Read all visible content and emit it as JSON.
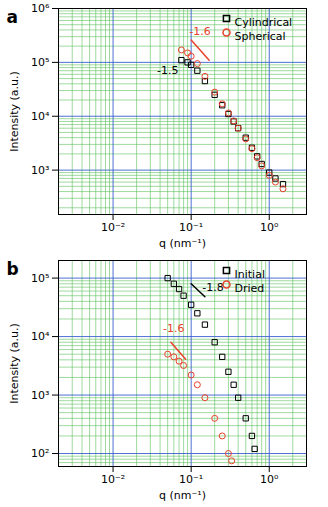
{
  "chart_data": [
    {
      "type": "scatter",
      "title": "a",
      "xlabel": "q (nm⁻¹)",
      "ylabel": "Intensity (a.u.)",
      "log": true,
      "grid": true,
      "legend": "top-right",
      "xlim": [
        0.002,
        3
      ],
      "ylim": [
        150,
        1000000
      ],
      "xticks": [
        {
          "value": 0.01,
          "label": "10⁻²"
        },
        {
          "value": 0.1,
          "label": "10⁻¹"
        },
        {
          "value": 1,
          "label": "10⁰"
        }
      ],
      "yticks": [
        {
          "value": 1000,
          "label": "10³"
        },
        {
          "value": 10000,
          "label": "10⁴"
        },
        {
          "value": 100000,
          "label": "10⁵"
        },
        {
          "value": 1000000,
          "label": "10⁶"
        }
      ],
      "series": [
        {
          "name": "Cylindrical",
          "color": "#000000",
          "marker": "square",
          "x": [
            0.075,
            0.09,
            0.1,
            0.12,
            0.15,
            0.2,
            0.25,
            0.3,
            0.35,
            0.4,
            0.5,
            0.6,
            0.7,
            0.8,
            1.0,
            1.2,
            1.5
          ],
          "values": [
            110000,
            100000,
            90000,
            70000,
            45000,
            25000,
            16000,
            11000,
            8000,
            6000,
            4000,
            2600,
            1800,
            1300,
            900,
            700,
            550
          ]
        },
        {
          "name": "Spherical",
          "color": "#e8412c",
          "marker": "circle",
          "x": [
            0.075,
            0.09,
            0.1,
            0.12,
            0.15,
            0.2,
            0.25,
            0.3,
            0.35,
            0.4,
            0.5,
            0.6,
            0.7,
            0.8,
            1.0,
            1.2,
            1.5
          ],
          "values": [
            170000,
            150000,
            130000,
            95000,
            55000,
            28000,
            17000,
            11500,
            8200,
            6000,
            3800,
            2500,
            1700,
            1200,
            800,
            600,
            450
          ]
        }
      ],
      "slope_lines": [
        {
          "color": "#e8412c",
          "x": [
            0.1,
            0.17
          ],
          "y": [
            260000,
            110000
          ]
        }
      ],
      "annotations": [
        {
          "text": "-1.6",
          "x": 0.13,
          "y": 380000,
          "color": "#e8412c"
        },
        {
          "text": "-1.5",
          "x": 0.05,
          "y": 70000,
          "color": "#000000"
        }
      ]
    },
    {
      "type": "scatter",
      "title": "b",
      "xlabel": "q (nm⁻¹)",
      "ylabel": "Intensity (a.u.)",
      "log": true,
      "grid": true,
      "legend": "top-right",
      "xlim": [
        0.002,
        3
      ],
      "ylim": [
        60,
        200000
      ],
      "xticks": [
        {
          "value": 0.01,
          "label": "10⁻²"
        },
        {
          "value": 0.1,
          "label": "10⁻¹"
        },
        {
          "value": 1,
          "label": "10⁰"
        }
      ],
      "yticks": [
        {
          "value": 100,
          "label": "10²"
        },
        {
          "value": 1000,
          "label": "10³"
        },
        {
          "value": 10000,
          "label": "10⁴"
        },
        {
          "value": 100000,
          "label": "10⁵"
        }
      ],
      "series": [
        {
          "name": "Initial",
          "color": "#000000",
          "marker": "square",
          "x": [
            0.05,
            0.06,
            0.07,
            0.08,
            0.1,
            0.12,
            0.15,
            0.2,
            0.25,
            0.3,
            0.35,
            0.4,
            0.5,
            0.6,
            0.65
          ],
          "values": [
            100000,
            80000,
            65000,
            50000,
            35000,
            25000,
            16000,
            8000,
            4500,
            2500,
            1500,
            900,
            400,
            200,
            120
          ]
        },
        {
          "name": "Dried",
          "color": "#e8412c",
          "marker": "circle",
          "x": [
            0.05,
            0.06,
            0.07,
            0.08,
            0.1,
            0.12,
            0.15,
            0.2,
            0.25,
            0.3,
            0.33
          ],
          "values": [
            5000,
            4500,
            3800,
            3200,
            2200,
            1500,
            900,
            400,
            200,
            100,
            75
          ]
        }
      ],
      "slope_lines": [
        {
          "color": "#000000",
          "x": [
            0.1,
            0.15
          ],
          "y": [
            80000,
            48000
          ]
        },
        {
          "color": "#e8412c",
          "x": [
            0.055,
            0.085
          ],
          "y": [
            8000,
            4100
          ]
        }
      ],
      "annotations": [
        {
          "text": "-1.8",
          "x": 0.19,
          "y": 70000,
          "color": "#000000"
        },
        {
          "text": "-1.6",
          "x": 0.06,
          "y": 14000,
          "color": "#e8412c"
        }
      ]
    }
  ]
}
